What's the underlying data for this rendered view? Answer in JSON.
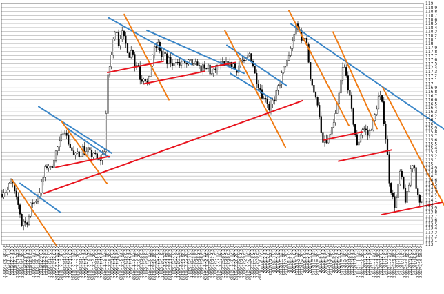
{
  "chart_data": {
    "type": "candlestick",
    "grid": true,
    "legend": "none",
    "ylim": [
      113.0,
      119.0
    ],
    "y_ticks": [
      "119",
      "118.9",
      "118.8",
      "118.7",
      "118.6",
      "118.5",
      "118.4",
      "118.3",
      "118.2",
      "118.1",
      "118",
      "117.9",
      "117.8",
      "117.7",
      "117.6",
      "117.5",
      "117.4",
      "117.3",
      "117.2",
      "117.1",
      "117",
      "116.9",
      "116.8",
      "116.7",
      "116.6",
      "116.5",
      "116.4",
      "116.3",
      "116.2",
      "116.1",
      "116",
      "115.9",
      "115.8",
      "115.7",
      "115.6",
      "115.5",
      "115.4",
      "115.3",
      "115.2",
      "115.1",
      "115",
      "114.9",
      "114.8",
      "114.7",
      "114.6",
      "114.5",
      "114.4",
      "114.3",
      "114.2",
      "114.1",
      "114",
      "113.9",
      "113.8",
      "113.7",
      "113.6",
      "113.5",
      "113.4",
      "113.3",
      "113.2",
      "113.1",
      "113"
    ],
    "x_ticks": [
      "2016/12/6 16:00",
      "2016/12/6 20:00",
      "2016/12/7 0:00",
      "2016/12/7 4:00",
      "2016/12/7 8:00",
      "2016/12/7 12:00",
      "2016/12/7 16:00",
      "2016/12/7 20:00",
      "2016/12/8 0:00",
      "2016/12/8 4:00",
      "2016/12/8 8:00",
      "2016/12/8 12:00",
      "2016/12/8 16:00",
      "2016/12/8 20:00",
      "2016/12/9 0:00",
      "2016/12/9 4:00",
      "2016/12/9 8:00",
      "2016/12/12 0:00",
      "2016/12/12 4:00",
      "2016/12/12 8:00",
      "2016/12/12 12:00",
      "2016/12/12 16:00",
      "2016/12/12 20:00",
      "2016/12/13 0:00",
      "2016/12/13 4:00",
      "2016/12/13 8:00",
      "2016/12/13 12:00",
      "2016/12/13 16:00",
      "2016/12/13 20:00",
      "2016/12/14 0:00",
      "2016/12/14 4:00",
      "2016/12/14 8:00",
      "2016/12/14 12:00",
      "2016/12/14 16:00",
      "2016/12/14 20:00",
      "2016/12/15 0:00",
      "2016/12/15 4:00",
      "2016/12/15 8:00",
      "2016/12/15 12:00",
      "2016/12/15 16:00",
      "2016/12/15 20:00",
      "2016/12/16 0:00",
      "2016/12/16 4:00",
      "2016/12/16 8:00",
      "2016/12/16 12:00",
      "2016/12/16 16:00",
      "2016/12/19 0:00",
      "2016/12/19 4:00",
      "2016/12/19 8:00",
      "2016/12/19 12:00",
      "2016/12/19 16:00",
      "2016/12/19 20:00",
      "2016/12/20 0:00",
      "2016/12/20 4:00",
      "2016/12/20 8:00",
      "2016/12/20 12:00",
      "2016/12/20 16:00",
      "2016/12/20 20:00",
      "2016/12/21 0:00",
      "2016/12/21 4:00",
      "2016/12/21 8:00",
      "2016/12/21 12:00",
      "2016/12/21 16:00",
      "2016/12/21 20:00",
      "2016/12/22 0:00",
      "2016/12/22 4:00",
      "2016/12/22 8:00",
      "2016/12/22 12:00",
      "2016/12/22 16:00",
      "2016/12/22 20:00",
      "2016/12/23 0:00",
      "2016/12/23 4:00",
      "2016/12/23 8:00",
      "2016/12/26 0:00",
      "2016/12/26 4:00",
      "2016/12/26 8:00",
      "2016/12/26 12:00",
      "2016/12/26 16:00",
      "2016/12/27 0:00",
      "2016/12/27 4:00",
      "2016/12/27 8:00",
      "2016/12/27 12:00",
      "2016/12/27 16:00",
      "2016/12/28 0:00",
      "2016/12/28 4:00",
      "2016/12/28 8:00",
      "2016/12/28 12:00",
      "2016/12/28 16:00",
      "2016/12/28 20:00",
      "2016/12/29 0:00",
      "2016/12/29 4:00",
      "2016/12/29 8:00",
      "2016/12/29 12:00",
      "2016/12/29 16:00",
      "2016/12/30 0:00",
      "2016/12/30 4:00",
      "2016/12/30 8:00",
      "2016/12/30 12:00",
      "2017/1/2 0:00",
      "2017/1/2 4:00",
      "2017/1/2 8:00",
      "2017/1/2 12:00",
      "2017/1/3 0:00",
      "2017/1/3 4:00",
      "2017/1/3 8:00",
      "2017/1/3 12:00",
      "2017/1/3 16:00",
      "2017/1/3 20:00",
      "2017/1/4 0:00",
      "2017/1/4 4:00",
      "2017/1/4 8:00",
      "2017/1/4 12:00",
      "2017/1/4 16:00",
      "2017/1/4 20:00",
      "2017/1/5 0:00",
      "2017/1/5 4:00",
      "2017/1/5 8:00",
      "2017/1/5 12:00",
      "2017/1/5 16:00",
      "2017/1/5 20:00",
      "2017/1/6 0:00",
      "2017/1/6 4:00",
      "2017/1/6 8:00",
      "2017/1/6 12:00",
      "2017/1/6 16:00",
      "2017/1/9 0:00",
      "2017/1/9 4:00",
      "2017/1/9 8:00",
      "2017/1/9 12:00",
      "2017/1/9 16:00",
      "2017/1/9 20:00",
      "2017/1/10 0:00",
      "2017/1/10 4:00",
      "2017/1/10 8:00",
      "2017/1/10 12:00",
      "2017/1/10 16:00",
      "2017/1/10 20:00",
      "2017/1/11 0:00",
      "2017/1/11 4:00",
      "2017/1/11 8:00",
      "2017/1/11 12:00",
      "2017/1/11 16:00",
      "2017/1/11 20:00",
      "2017/1/12 0:00",
      "2017/1/12 4:00",
      "2017/1/12 8:00",
      "2017/1/12 12:00",
      "2017/1/12 16:00",
      "2017/1/12 20:00",
      "2017/1/13 0:00",
      "2017/1/13 4:00",
      "2017/1/13 8:00",
      "2017/1/13 12:00",
      "2017/1/13 16:00",
      "2017/1/16 0:00",
      "2017/1/16 4:00",
      "2017/1/16 8:00",
      "2017/1/16 12:00",
      "2017/1/16 16:00"
    ],
    "series": [
      {
        "price_path": [
          [
            0,
            114.25
          ],
          [
            4,
            114.35
          ],
          [
            8,
            114.3
          ],
          [
            12,
            114.5
          ],
          [
            16,
            114.55
          ],
          [
            20,
            114.2
          ],
          [
            24,
            114.0
          ],
          [
            28,
            113.7
          ],
          [
            30,
            113.45
          ],
          [
            32,
            113.6
          ],
          [
            36,
            113.5
          ],
          [
            40,
            113.7
          ],
          [
            44,
            114.1
          ],
          [
            46,
            114.0
          ],
          [
            50,
            114.1
          ],
          [
            56,
            114.35
          ],
          [
            60,
            114.6
          ],
          [
            64,
            114.9
          ],
          [
            68,
            115.0
          ],
          [
            72,
            114.85
          ],
          [
            76,
            115.15
          ],
          [
            80,
            115.35
          ],
          [
            84,
            115.5
          ],
          [
            88,
            115.75
          ],
          [
            91,
            115.95
          ],
          [
            94,
            115.7
          ],
          [
            98,
            115.5
          ],
          [
            102,
            115.35
          ],
          [
            106,
            115.15
          ],
          [
            110,
            115.3
          ],
          [
            114,
            115.2
          ],
          [
            118,
            115.4
          ],
          [
            122,
            115.25
          ],
          [
            126,
            115.35
          ],
          [
            130,
            115.2
          ],
          [
            134,
            115.3
          ],
          [
            138,
            115.1
          ],
          [
            142,
            115.05
          ],
          [
            146,
            115.2
          ],
          [
            149,
            115.3
          ],
          [
            151,
            115.9
          ],
          [
            153,
            116.8
          ],
          [
            155,
            117.3
          ],
          [
            158,
            117.5
          ],
          [
            162,
            118.05
          ],
          [
            166,
            118.5
          ],
          [
            170,
            118.0
          ],
          [
            174,
            118.3
          ],
          [
            178,
            118.1
          ],
          [
            182,
            117.9
          ],
          [
            186,
            117.7
          ],
          [
            190,
            117.9
          ],
          [
            194,
            117.4
          ],
          [
            198,
            117.55
          ],
          [
            202,
            117.05
          ],
          [
            206,
            117.2
          ],
          [
            210,
            117.1
          ],
          [
            213,
            116.9
          ],
          [
            216,
            117.4
          ],
          [
            220,
            117.8
          ],
          [
            224,
            117.9
          ],
          [
            228,
            118.0
          ],
          [
            232,
            117.65
          ],
          [
            236,
            117.8
          ],
          [
            240,
            117.5
          ],
          [
            244,
            117.6
          ],
          [
            248,
            117.4
          ],
          [
            252,
            117.65
          ],
          [
            256,
            117.5
          ],
          [
            260,
            117.45
          ],
          [
            264,
            117.6
          ],
          [
            268,
            117.4
          ],
          [
            272,
            117.55
          ],
          [
            276,
            117.5
          ],
          [
            280,
            117.4
          ],
          [
            284,
            117.55
          ],
          [
            288,
            117.35
          ],
          [
            292,
            117.4
          ],
          [
            296,
            117.3
          ],
          [
            300,
            117.45
          ],
          [
            304,
            117.2
          ],
          [
            308,
            117.3
          ],
          [
            312,
            117.4
          ],
          [
            316,
            117.45
          ],
          [
            320,
            117.5
          ],
          [
            324,
            117.4
          ],
          [
            328,
            117.55
          ],
          [
            332,
            117.45
          ],
          [
            336,
            117.5
          ],
          [
            340,
            117.3
          ],
          [
            344,
            117.45
          ],
          [
            348,
            117.6
          ],
          [
            352,
            117.5
          ],
          [
            356,
            117.65
          ],
          [
            360,
            117.75
          ],
          [
            364,
            117.55
          ],
          [
            368,
            117.2
          ],
          [
            372,
            117.0
          ],
          [
            376,
            116.85
          ],
          [
            380,
            116.6
          ],
          [
            384,
            116.7
          ],
          [
            388,
            116.35
          ],
          [
            392,
            116.6
          ],
          [
            396,
            116.5
          ],
          [
            400,
            116.85
          ],
          [
            404,
            117.05
          ],
          [
            408,
            117.3
          ],
          [
            412,
            117.5
          ],
          [
            416,
            117.55
          ],
          [
            420,
            117.9
          ],
          [
            424,
            118.2
          ],
          [
            428,
            118.5
          ],
          [
            432,
            118.3
          ],
          [
            436,
            118.0
          ],
          [
            440,
            118.25
          ],
          [
            444,
            117.8
          ],
          [
            448,
            117.2
          ],
          [
            452,
            116.9
          ],
          [
            456,
            116.6
          ],
          [
            460,
            116.5
          ],
          [
            463,
            115.85
          ],
          [
            466,
            115.45
          ],
          [
            469,
            115.6
          ],
          [
            472,
            115.5
          ],
          [
            476,
            115.75
          ],
          [
            480,
            115.9
          ],
          [
            484,
            116.15
          ],
          [
            488,
            116.5
          ],
          [
            492,
            117.0
          ],
          [
            496,
            117.5
          ],
          [
            500,
            117.2
          ],
          [
            504,
            116.8
          ],
          [
            508,
            116.3
          ],
          [
            512,
            115.9
          ],
          [
            516,
            115.4
          ],
          [
            520,
            115.7
          ],
          [
            524,
            115.9
          ],
          [
            528,
            115.85
          ],
          [
            532,
            115.7
          ],
          [
            536,
            115.9
          ],
          [
            540,
            116.05
          ],
          [
            544,
            116.4
          ],
          [
            548,
            116.75
          ],
          [
            552,
            116.5
          ],
          [
            556,
            115.9
          ],
          [
            560,
            115.2
          ],
          [
            563,
            114.5
          ],
          [
            566,
            114.3
          ],
          [
            570,
            113.95
          ],
          [
            574,
            114.2
          ],
          [
            578,
            114.8
          ],
          [
            582,
            114.5
          ],
          [
            586,
            114.1
          ],
          [
            590,
            114.3
          ],
          [
            594,
            114.9
          ],
          [
            598,
            115.1
          ],
          [
            602,
            114.4
          ],
          [
            606,
            113.95
          ],
          [
            610,
            114.1
          ]
        ]
      }
    ],
    "trendlines": [
      {
        "color": "#3a86c8",
        "p1": [
          27,
          114.52
        ],
        "p2": [
          86,
          113.79
        ]
      },
      {
        "color": "#3a86c8",
        "p1": [
          54,
          116.43
        ],
        "p2": [
          160,
          115.27
        ]
      },
      {
        "color": "#3a86c8",
        "p1": [
          93,
          115.92
        ],
        "p2": [
          156,
          115.17
        ]
      },
      {
        "color": "#3a86c8",
        "p1": [
          155,
          118.65
        ],
        "p2": [
          276,
          117.48
        ]
      },
      {
        "color": "#3a86c8",
        "p1": [
          211,
          118.33
        ],
        "p2": [
          352,
          117.26
        ]
      },
      {
        "color": "#3a86c8",
        "p1": [
          327,
          117.96
        ],
        "p2": [
          414,
          116.95
        ]
      },
      {
        "color": "#3a86c8",
        "p1": [
          332,
          117.26
        ],
        "p2": [
          393,
          116.62
        ]
      },
      {
        "color": "#3a86c8",
        "p1": [
          420,
          118.49
        ],
        "p2": [
          644,
          115.85
        ]
      },
      {
        "color": "#f07c14",
        "p1": [
          15,
          114.62
        ],
        "p2": [
          80,
          112.96
        ]
      },
      {
        "color": "#f07c14",
        "p1": [
          87,
          116.07
        ],
        "p2": [
          153,
          114.52
        ]
      },
      {
        "color": "#f07c14",
        "p1": [
          178,
          118.73
        ],
        "p2": [
          243,
          116.6
        ]
      },
      {
        "color": "#f07c14",
        "p1": [
          324,
          118.33
        ],
        "p2": [
          412,
          115.42
        ]
      },
      {
        "color": "#f07c14",
        "p1": [
          417,
          118.82
        ],
        "p2": [
          504,
          115.96
        ]
      },
      {
        "color": "#f07c14",
        "p1": [
          481,
          118.29
        ],
        "p2": [
          545,
          115.88
        ]
      },
      {
        "color": "#f07c14",
        "p1": [
          553,
          116.91
        ],
        "p2": [
          644,
          113.92
        ]
      },
      {
        "color": "#e8141e",
        "p1": [
          62,
          114.27
        ],
        "p2": [
          437,
          116.58
        ]
      },
      {
        "color": "#e8141e",
        "p1": [
          79,
          114.92
        ],
        "p2": [
          156,
          115.19
        ]
      },
      {
        "color": "#e8141e",
        "p1": [
          154,
          117.28
        ],
        "p2": [
          235,
          117.56
        ]
      },
      {
        "color": "#e8141e",
        "p1": [
          207,
          117.0
        ],
        "p2": [
          295,
          117.31
        ]
      },
      {
        "color": "#e8141e",
        "p1": [
          305,
          117.42
        ],
        "p2": [
          340,
          117.53
        ]
      },
      {
        "color": "#e8141e",
        "p1": [
          468,
          115.6
        ],
        "p2": [
          523,
          115.8
        ]
      },
      {
        "color": "#e8141e",
        "p1": [
          489,
          115.07
        ],
        "p2": [
          566,
          115.35
        ]
      },
      {
        "color": "#e8141e",
        "p1": [
          552,
          113.74
        ],
        "p2": [
          640,
          114.05
        ]
      }
    ],
    "colors": {
      "up": "#ffffff",
      "down": "#000000",
      "grid": "#9a9a9a",
      "blue": "#3a86c8",
      "orange": "#f07c14",
      "red": "#e8141e"
    }
  }
}
